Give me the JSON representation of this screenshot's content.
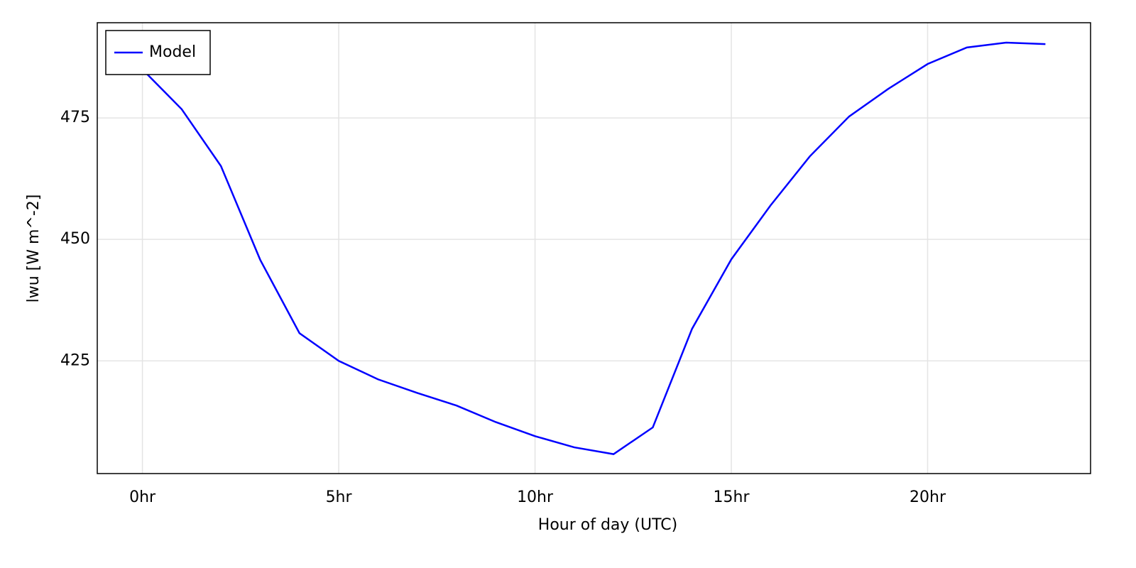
{
  "chart_data": {
    "type": "line",
    "x_label": "Hour of day (UTC)",
    "y_label": "lwu [W m^-2]",
    "x": [
      0,
      1,
      2,
      3,
      4,
      5,
      6,
      7,
      8,
      9,
      10,
      11,
      12,
      13,
      14,
      15,
      16,
      17,
      18,
      19,
      20,
      21,
      22,
      23
    ],
    "series": [
      {
        "name": "Model",
        "color": "#0000ff",
        "values": [
          485.0,
          476.8,
          465.1,
          445.8,
          430.7,
          425.0,
          421.2,
          418.4,
          415.8,
          412.4,
          409.5,
          407.2,
          405.8,
          411.3,
          431.6,
          445.9,
          457.0,
          467.1,
          475.3,
          481.0,
          486.1,
          489.5,
          490.5,
          490.2
        ]
      }
    ],
    "xlim": [
      -1.15,
      24.15
    ],
    "ylim": [
      401.8,
      494.6
    ],
    "xticks": [
      {
        "value": 0,
        "label": "0hr"
      },
      {
        "value": 5,
        "label": "5hr"
      },
      {
        "value": 10,
        "label": "10hr"
      },
      {
        "value": 15,
        "label": "15hr"
      },
      {
        "value": 20,
        "label": "20hr"
      }
    ],
    "yticks": [
      425,
      450,
      475
    ],
    "grid": true,
    "legend": "upper-left"
  }
}
